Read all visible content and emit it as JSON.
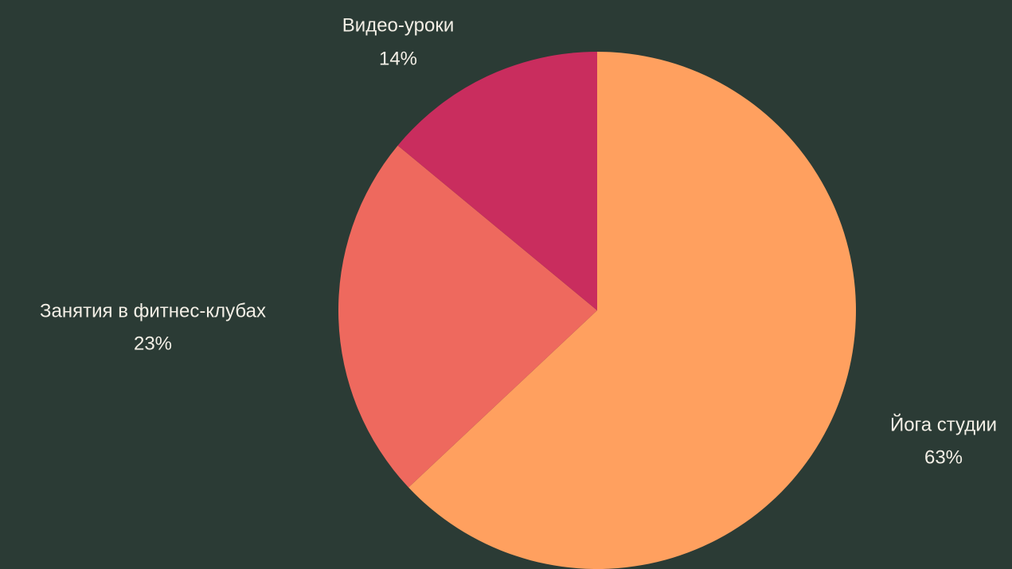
{
  "chart_data": {
    "type": "pie",
    "title": "",
    "slices": [
      {
        "label": "Йога студии",
        "value": 63,
        "percent_label": "63%",
        "color": "#ffa05f"
      },
      {
        "label": "Занятия в фитнес-клубах",
        "value": 23,
        "percent_label": "23%",
        "color": "#ee695e"
      },
      {
        "label": "Видео-уроки",
        "value": 14,
        "percent_label": "14%",
        "color": "#c92d5e"
      }
    ],
    "start_angle_deg": 0,
    "direction": "clockwise",
    "background": "#2b3b35",
    "legend": "none",
    "label_color": "#f3efe6"
  }
}
